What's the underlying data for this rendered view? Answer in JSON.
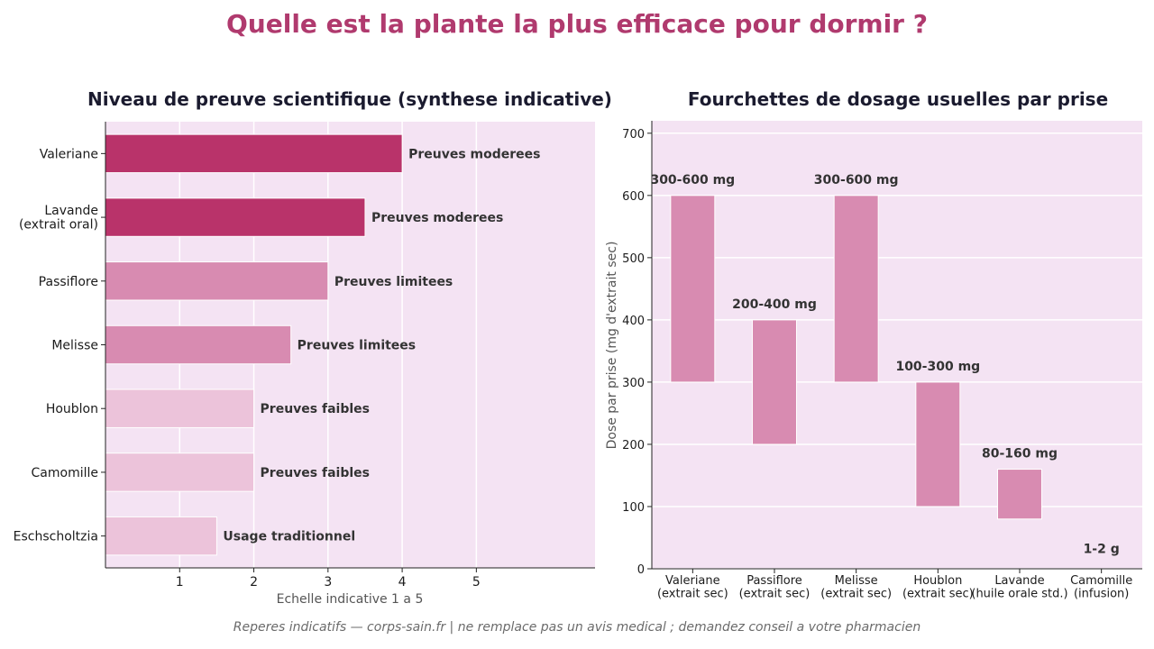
{
  "title": "Quelle est la plante la plus efficace pour dormir ?",
  "footer": "Reperes indicatifs — corps-sain.fr | ne remplace pas un avis medical ; demandez conseil a votre pharmacien",
  "colors": {
    "title": "#b03a6e",
    "panel_bg": "#f4e3f3",
    "strong": "#b9336a",
    "medium": "#d88bb1",
    "light": "#ecc3da"
  },
  "chart_data": [
    {
      "type": "bar",
      "orientation": "horizontal",
      "title": "Niveau de preuve scientifique (synthese indicative)",
      "xlabel": "Echelle indicative 1 a 5",
      "ylabel": "",
      "xlim": [
        0,
        6.6
      ],
      "xticks": [
        1,
        2,
        3,
        4,
        5
      ],
      "grid": true,
      "categories": [
        "Valeriane",
        "Lavande\n(extrait oral)",
        "Passiflore",
        "Melisse",
        "Houblon",
        "Camomille",
        "Eschscholtzia"
      ],
      "values": [
        4,
        3.5,
        3,
        2.5,
        2,
        2,
        1.5
      ],
      "labels": [
        "Preuves moderees",
        "Preuves moderees",
        "Preuves limitees",
        "Preuves limitees",
        "Preuves faibles",
        "Preuves faibles",
        "Usage traditionnel"
      ],
      "levels": [
        "strong",
        "strong",
        "medium",
        "medium",
        "light",
        "light",
        "light"
      ]
    },
    {
      "type": "bar",
      "subtype": "floating-range",
      "title": "Fourchettes de dosage usuelles par prise",
      "xlabel": "",
      "ylabel": "Dose par prise (mg d'extrait sec)",
      "ylim": [
        0,
        720
      ],
      "yticks": [
        0,
        100,
        200,
        300,
        400,
        500,
        600,
        700
      ],
      "grid": true,
      "categories": [
        "Valeriane\n(extrait sec)",
        "Passiflore\n(extrait sec)",
        "Melisse\n(extrait sec)",
        "Houblon\n(extrait sec)",
        "Lavande\n(huile orale std.)",
        "Camomille\n(infusion)"
      ],
      "ranges": [
        [
          300,
          600
        ],
        [
          200,
          400
        ],
        [
          300,
          600
        ],
        [
          100,
          300
        ],
        [
          80,
          160
        ],
        null
      ],
      "labels": [
        "300-600 mg",
        "200-400 mg",
        "300-600 mg",
        "100-300 mg",
        "80-160 mg",
        "1-2 g"
      ]
    }
  ]
}
